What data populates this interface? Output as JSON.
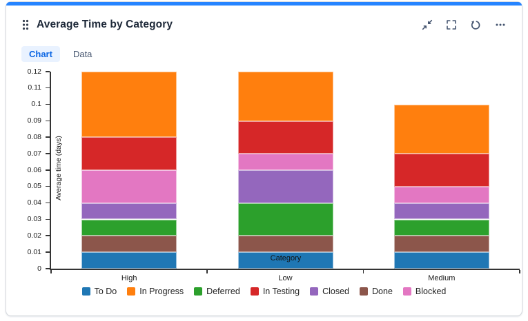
{
  "header": {
    "title": "Average Time by Category",
    "icons": [
      {
        "name": "drag-handle-icon"
      },
      {
        "name": "collapse-icon"
      },
      {
        "name": "fullscreen-icon"
      },
      {
        "name": "reset-icon"
      },
      {
        "name": "more-icon"
      }
    ]
  },
  "tabs": [
    {
      "label": "Chart",
      "active": true
    },
    {
      "label": "Data",
      "active": false
    }
  ],
  "chart_data": {
    "type": "bar",
    "stacked": true,
    "title": "Average Time by Category",
    "xlabel": "Category",
    "ylabel": "Average time (days)",
    "categories": [
      "High",
      "Low",
      "Medium"
    ],
    "series": [
      {
        "name": "To Do",
        "color": "#1f77b4",
        "values": [
          0.01,
          0.01,
          0.01
        ]
      },
      {
        "name": "Done",
        "color": "#8c564b",
        "values": [
          0.01,
          0.01,
          0.01
        ]
      },
      {
        "name": "Deferred",
        "color": "#2ca02c",
        "values": [
          0.01,
          0.02,
          0.01
        ]
      },
      {
        "name": "Closed",
        "color": "#9467bd",
        "values": [
          0.01,
          0.02,
          0.01
        ]
      },
      {
        "name": "Blocked",
        "color": "#e377c2",
        "values": [
          0.02,
          0.01,
          0.01
        ]
      },
      {
        "name": "In Testing",
        "color": "#d62728",
        "values": [
          0.02,
          0.02,
          0.02
        ]
      },
      {
        "name": "In Progress",
        "color": "#ff7f0e",
        "values": [
          0.04,
          0.03,
          0.03
        ]
      }
    ],
    "stack_order": "bottom-to-top as listed in series",
    "legend_order": [
      "To Do",
      "In Progress",
      "Deferred",
      "In Testing",
      "Closed",
      "Done",
      "Blocked"
    ],
    "ylim": [
      0,
      0.12
    ],
    "ytick_step": 0.01,
    "grid": false,
    "legend_position": "bottom"
  },
  "colors": {
    "accent_bar": "#2684FF",
    "tab_active_bg": "#E9F2FF",
    "tab_active_text": "#0C66E4",
    "icon": "#44546F",
    "axis": "#333333"
  }
}
